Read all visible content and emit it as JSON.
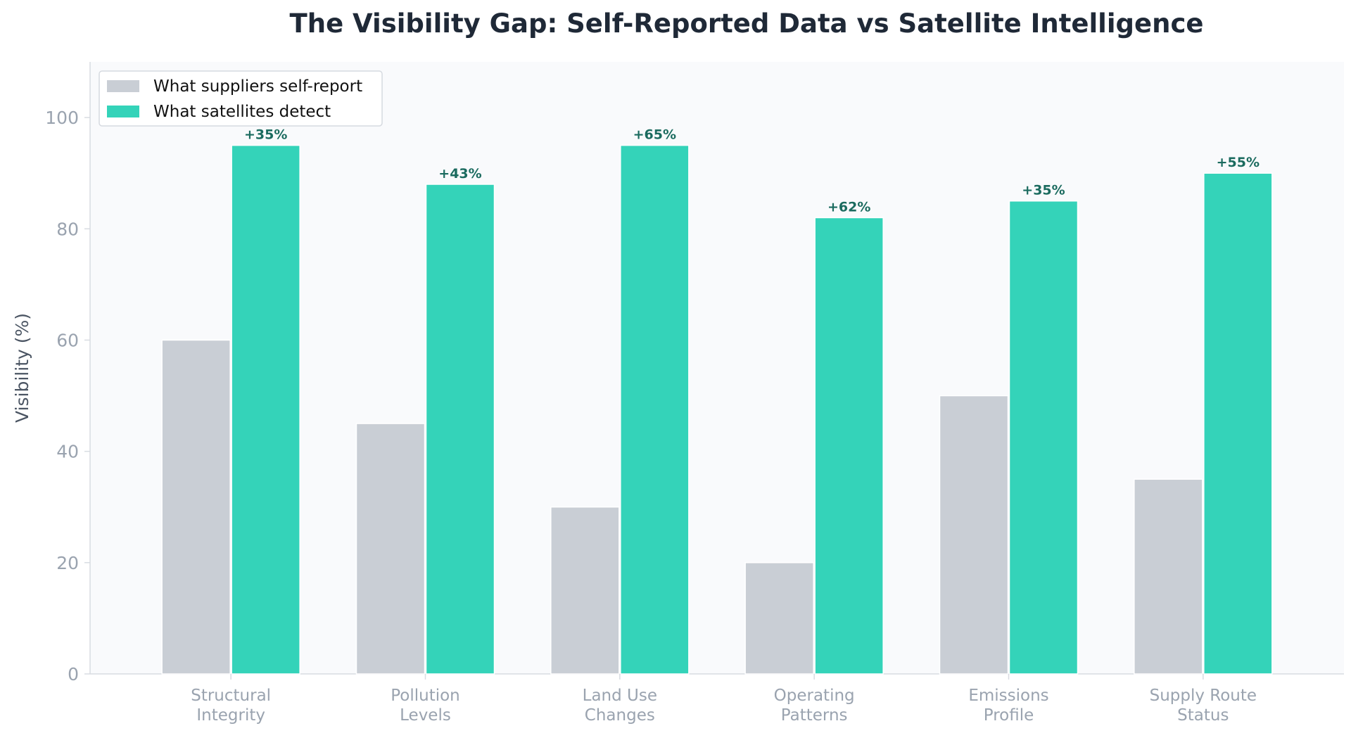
{
  "colors": {
    "self_report": "#C9CED5",
    "satellite": "#34D3B9",
    "gap_label": "#1B6B5F",
    "title": "#1F2937",
    "tick": "#9AA3AF",
    "ylabel": "#4B5563",
    "plot_bg": "#F9FAFC",
    "axis": "#D8DCE2"
  },
  "chart_data": {
    "type": "bar",
    "title": "The Visibility Gap: Self-Reported Data vs Satellite Intelligence",
    "xlabel": "",
    "ylabel": "Visibility (%)",
    "ylim": [
      0,
      110
    ],
    "yticks": [
      0,
      20,
      40,
      60,
      80,
      100
    ],
    "grid": false,
    "legend_position": "upper-left",
    "categories": [
      [
        "Structural",
        "Integrity"
      ],
      [
        "Pollution",
        "Levels"
      ],
      [
        "Land Use",
        "Changes"
      ],
      [
        "Operating",
        "Patterns"
      ],
      [
        "Emissions",
        "Profile"
      ],
      [
        "Supply Route",
        "Status"
      ]
    ],
    "series": [
      {
        "name": "What suppliers self-report",
        "values": [
          60,
          45,
          30,
          20,
          50,
          35
        ]
      },
      {
        "name": "What satellites detect",
        "values": [
          95,
          88,
          95,
          82,
          85,
          90
        ]
      }
    ],
    "gap_labels": [
      "+35%",
      "+43%",
      "+65%",
      "+62%",
      "+35%",
      "+55%"
    ]
  }
}
